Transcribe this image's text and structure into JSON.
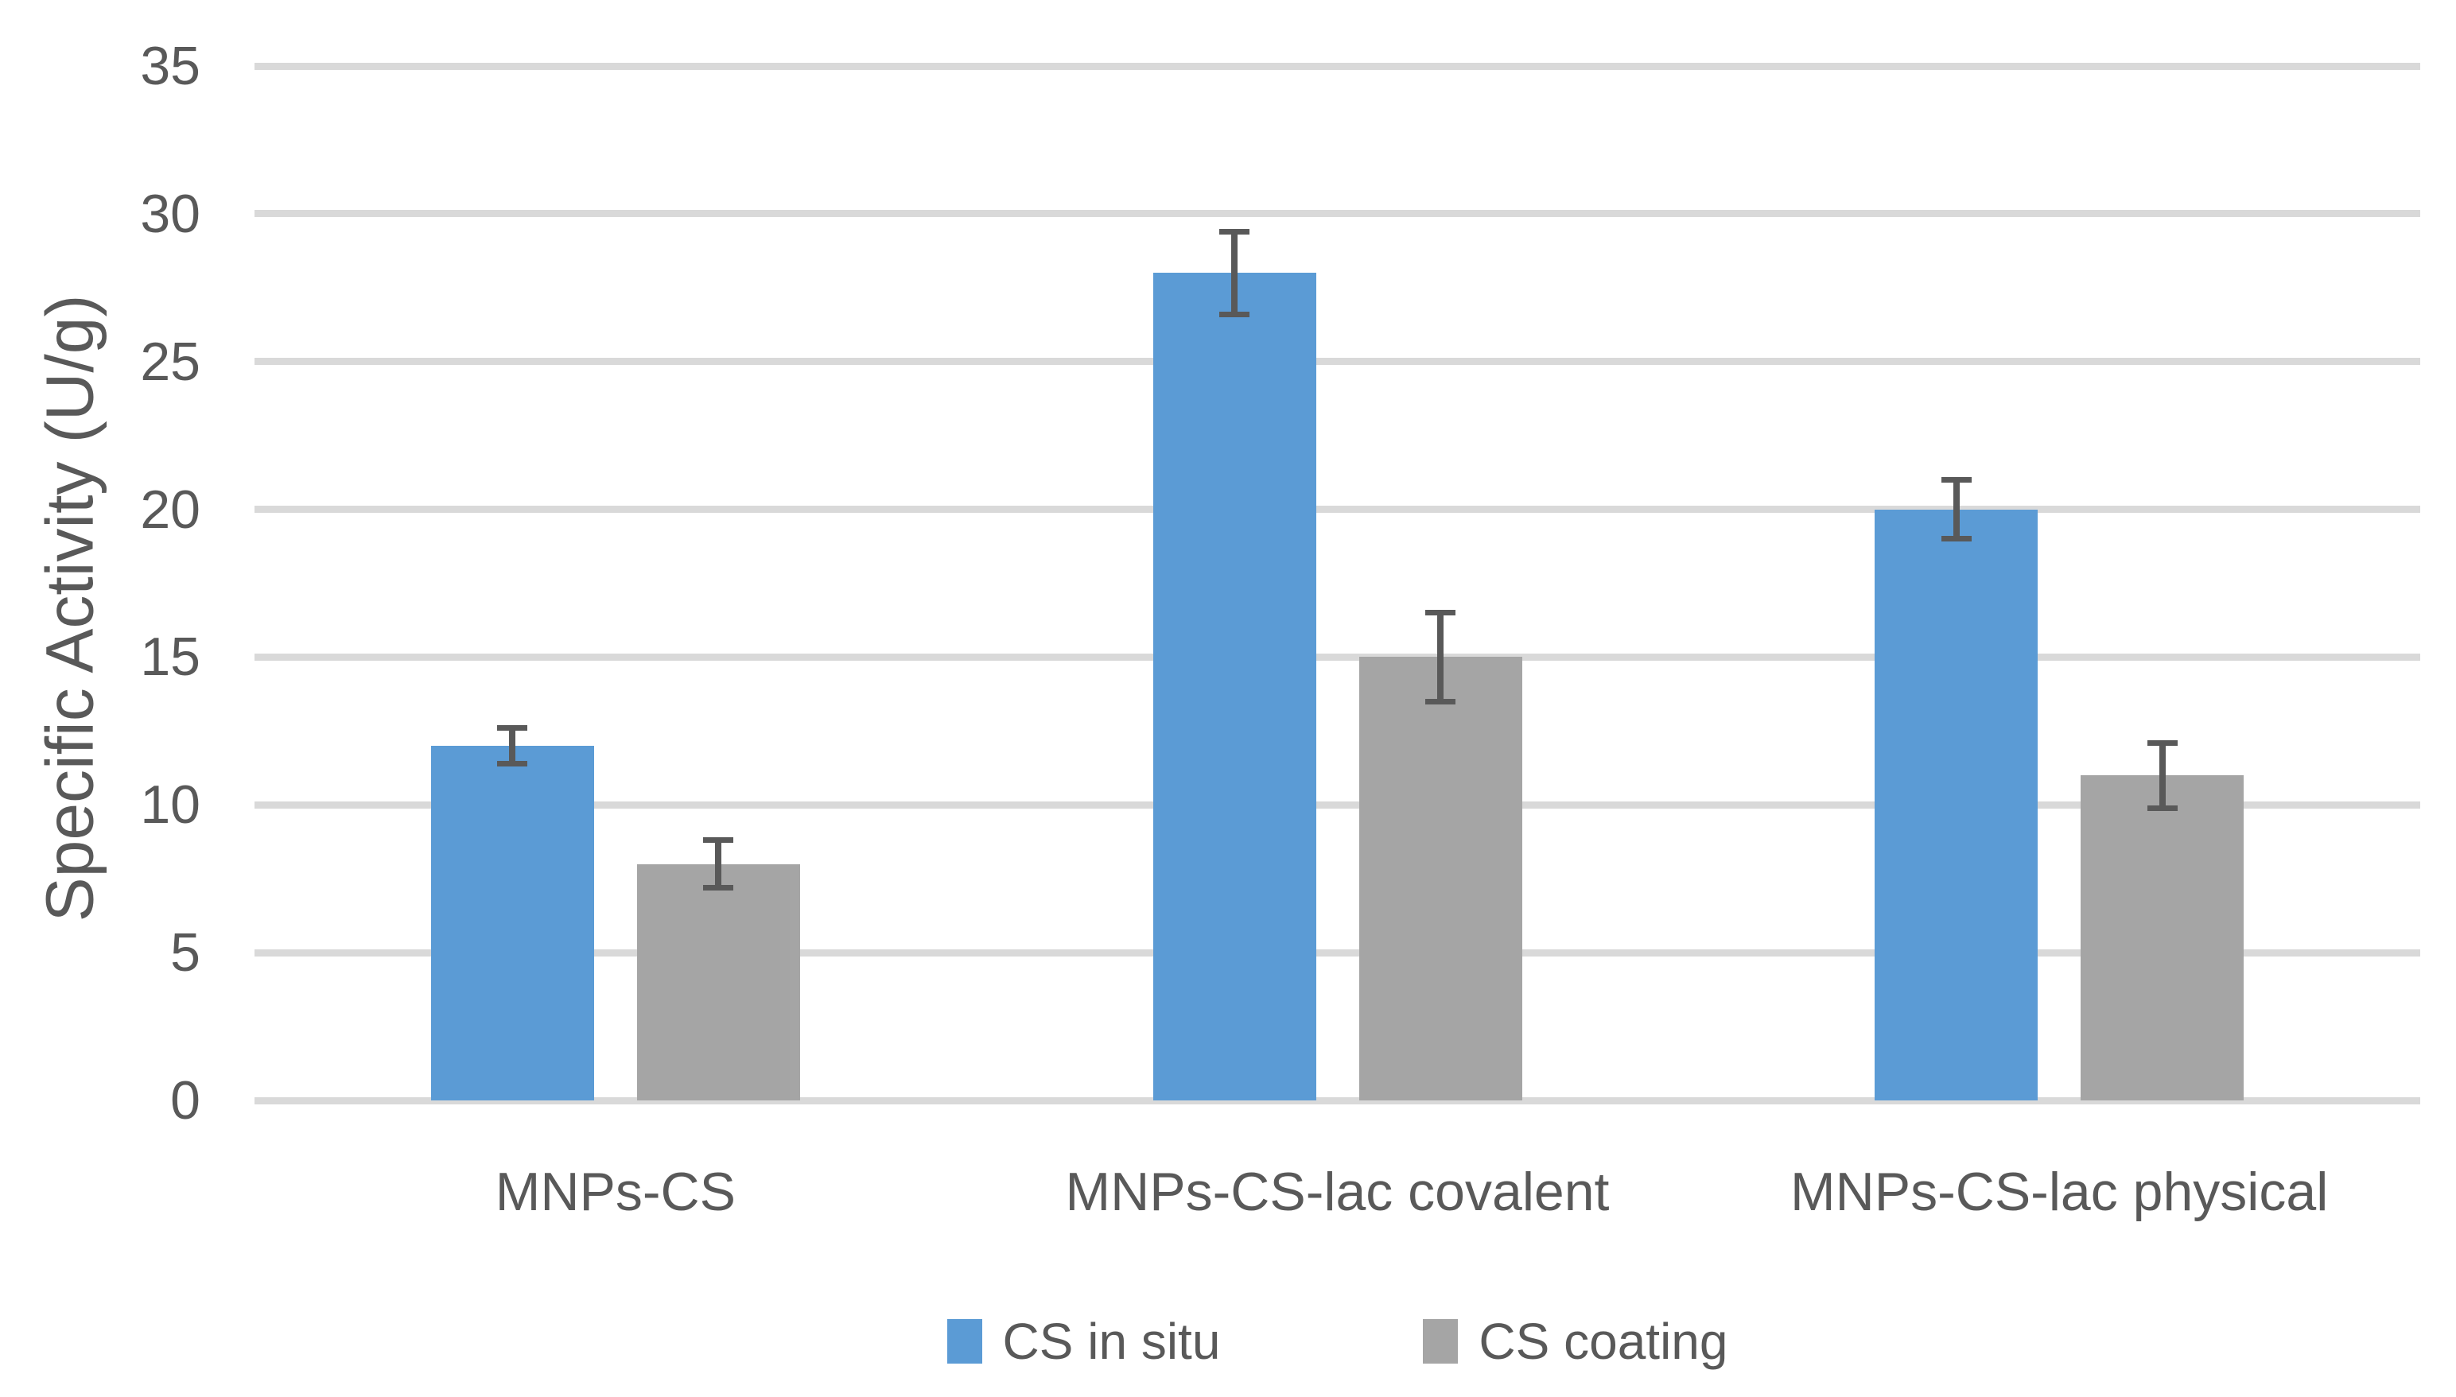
{
  "chart_data": {
    "type": "bar",
    "title": "",
    "categories": [
      "MNPs-CS",
      "MNPs-CS-lac covalent",
      "MNPs-CS-lac physical"
    ],
    "series": [
      {
        "name": "CS in situ",
        "color": "#5B9BD5",
        "values": [
          12,
          28,
          20
        ],
        "errors": [
          0.6,
          1.4,
          1.0
        ]
      },
      {
        "name": "CS coating",
        "color": "#A5A5A5",
        "values": [
          8,
          15,
          11
        ],
        "errors": [
          0.8,
          1.5,
          1.1
        ]
      }
    ],
    "xlabel": "",
    "ylabel": "Specific Activity (U/g)",
    "ylim": [
      0,
      35
    ],
    "yticks": [
      0,
      5,
      10,
      15,
      20,
      25,
      30,
      35
    ],
    "grid": true,
    "legend_position": "bottom",
    "colors": {
      "gridline": "#D9D9D9",
      "error_bar": "#595959",
      "text": "#595959",
      "background": "#FFFFFF"
    }
  }
}
